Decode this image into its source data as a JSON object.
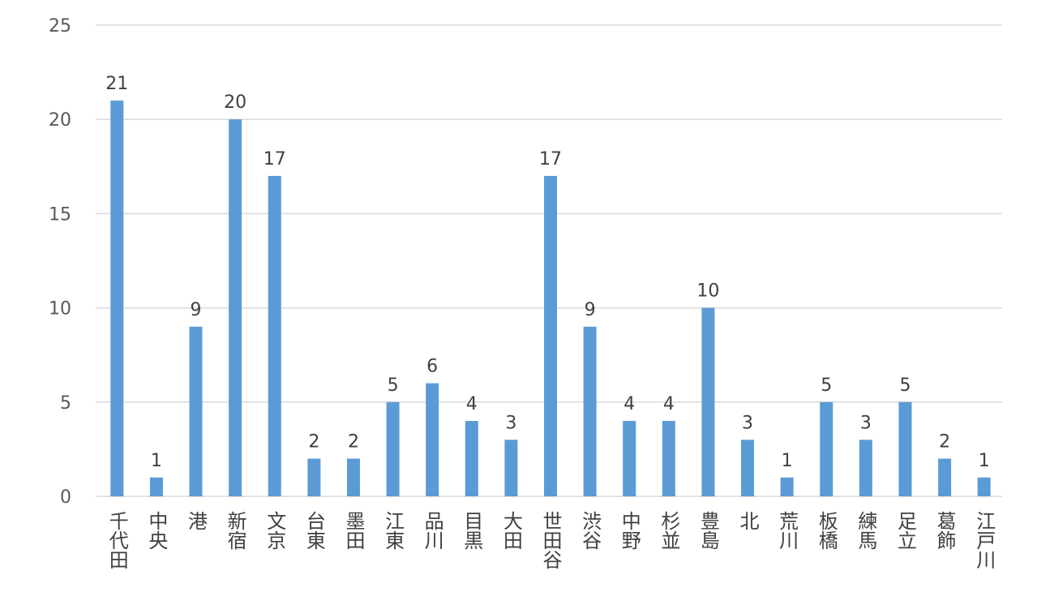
{
  "chart_data": {
    "type": "bar",
    "title": "",
    "xlabel": "",
    "ylabel": "",
    "ylim": [
      0,
      25
    ],
    "yticks": [
      0,
      5,
      10,
      15,
      20,
      25
    ],
    "grid": true,
    "color": "#5B9BD5",
    "categories": [
      "千代田",
      "中央",
      "港",
      "新宿",
      "文京",
      "台東",
      "墨田",
      "江東",
      "品川",
      "目黒",
      "大田",
      "世田谷",
      "渋谷",
      "中野",
      "杉並",
      "豊島",
      "北",
      "荒川",
      "板橋",
      "練馬",
      "足立",
      "葛飾",
      "江戸川"
    ],
    "values": [
      21,
      1,
      9,
      20,
      17,
      2,
      2,
      5,
      6,
      4,
      3,
      17,
      9,
      4,
      4,
      10,
      3,
      1,
      5,
      3,
      5,
      2,
      1
    ]
  }
}
